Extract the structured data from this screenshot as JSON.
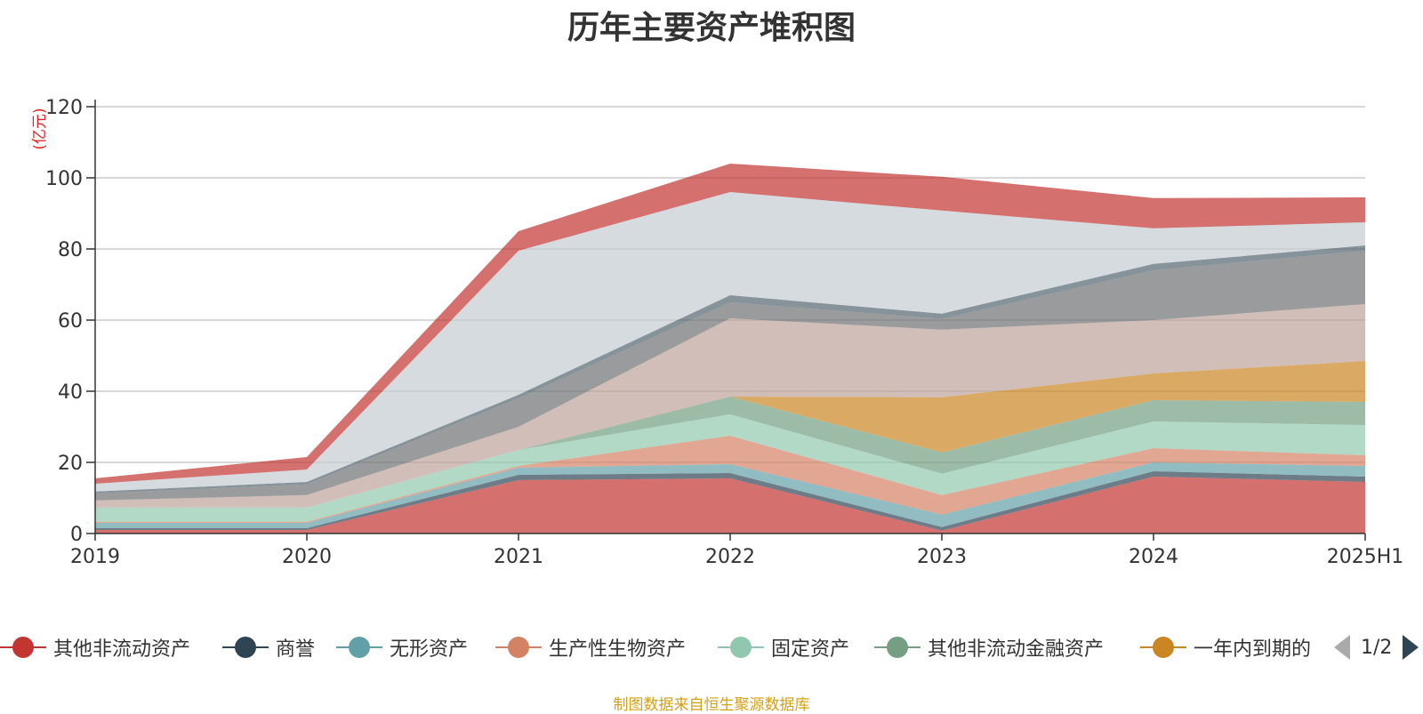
{
  "chart_data": {
    "type": "area",
    "title": "历年主要资产堆积图",
    "ylabel": "(亿元)",
    "xlabel": "",
    "ylim": [
      0,
      120
    ],
    "yticks": [
      0,
      20,
      40,
      60,
      80,
      100,
      120
    ],
    "categories": [
      "2019",
      "2020",
      "2021",
      "2022",
      "2023",
      "2024",
      "2025H1"
    ],
    "stacked": true,
    "grid": true,
    "series": [
      {
        "name": "其他非流动资产",
        "color": "#c23531",
        "legend": true,
        "values": [
          1.0,
          1.0,
          15.0,
          15.5,
          0.8,
          16.0,
          14.5
        ]
      },
      {
        "name": "商誉",
        "color": "#2f4554",
        "legend": true,
        "values": [
          0.5,
          0.5,
          1.5,
          1.5,
          1.0,
          1.5,
          1.5
        ]
      },
      {
        "name": "无形资产",
        "color": "#61a0a8",
        "legend": true,
        "values": [
          1.5,
          1.5,
          2.0,
          2.5,
          3.5,
          2.5,
          3.0
        ]
      },
      {
        "name": "生产性生物资产",
        "color": "#d48265",
        "legend": true,
        "values": [
          0.3,
          0.3,
          0.5,
          8.0,
          5.5,
          4.0,
          3.0
        ]
      },
      {
        "name": "固定资产",
        "color": "#91c7ae",
        "legend": true,
        "values": [
          4.0,
          4.0,
          4.5,
          6.0,
          6.0,
          7.5,
          8.5
        ]
      },
      {
        "name": "其他非流动金融资产",
        "color": "#749f83",
        "legend": true,
        "values": [
          0.0,
          0.0,
          0.0,
          5.0,
          6.0,
          6.0,
          6.5
        ]
      },
      {
        "name": "一年内到期的",
        "color": "#ca8622",
        "legend": true,
        "values": [
          0.0,
          0.0,
          0.0,
          0.0,
          15.5,
          7.5,
          11.5
        ]
      },
      {
        "name": "",
        "color": "#bda29a",
        "legend": false,
        "values": [
          2.0,
          3.5,
          6.5,
          22.0,
          19.0,
          15.0,
          16.0
        ]
      },
      {
        "name": "",
        "color": "#6e7074",
        "legend": false,
        "values": [
          2.0,
          3.0,
          8.0,
          4.5,
          3.0,
          14.0,
          15.0
        ]
      },
      {
        "name": "",
        "color": "#546570",
        "legend": false,
        "values": [
          0.5,
          0.7,
          1.0,
          2.0,
          1.5,
          1.8,
          1.5
        ]
      },
      {
        "name": "",
        "color": "#c4ccd3",
        "legend": false,
        "values": [
          2.2,
          3.5,
          40.5,
          29.0,
          29.0,
          10.0,
          6.5
        ]
      },
      {
        "name": "",
        "color": "#c23531",
        "legend": false,
        "values": [
          1.5,
          3.5,
          5.5,
          8.0,
          9.5,
          8.5,
          7.0
        ]
      }
    ]
  },
  "legend": {
    "pager_text": "1/2"
  },
  "source_note": "制图数据来自恒生聚源数据库"
}
